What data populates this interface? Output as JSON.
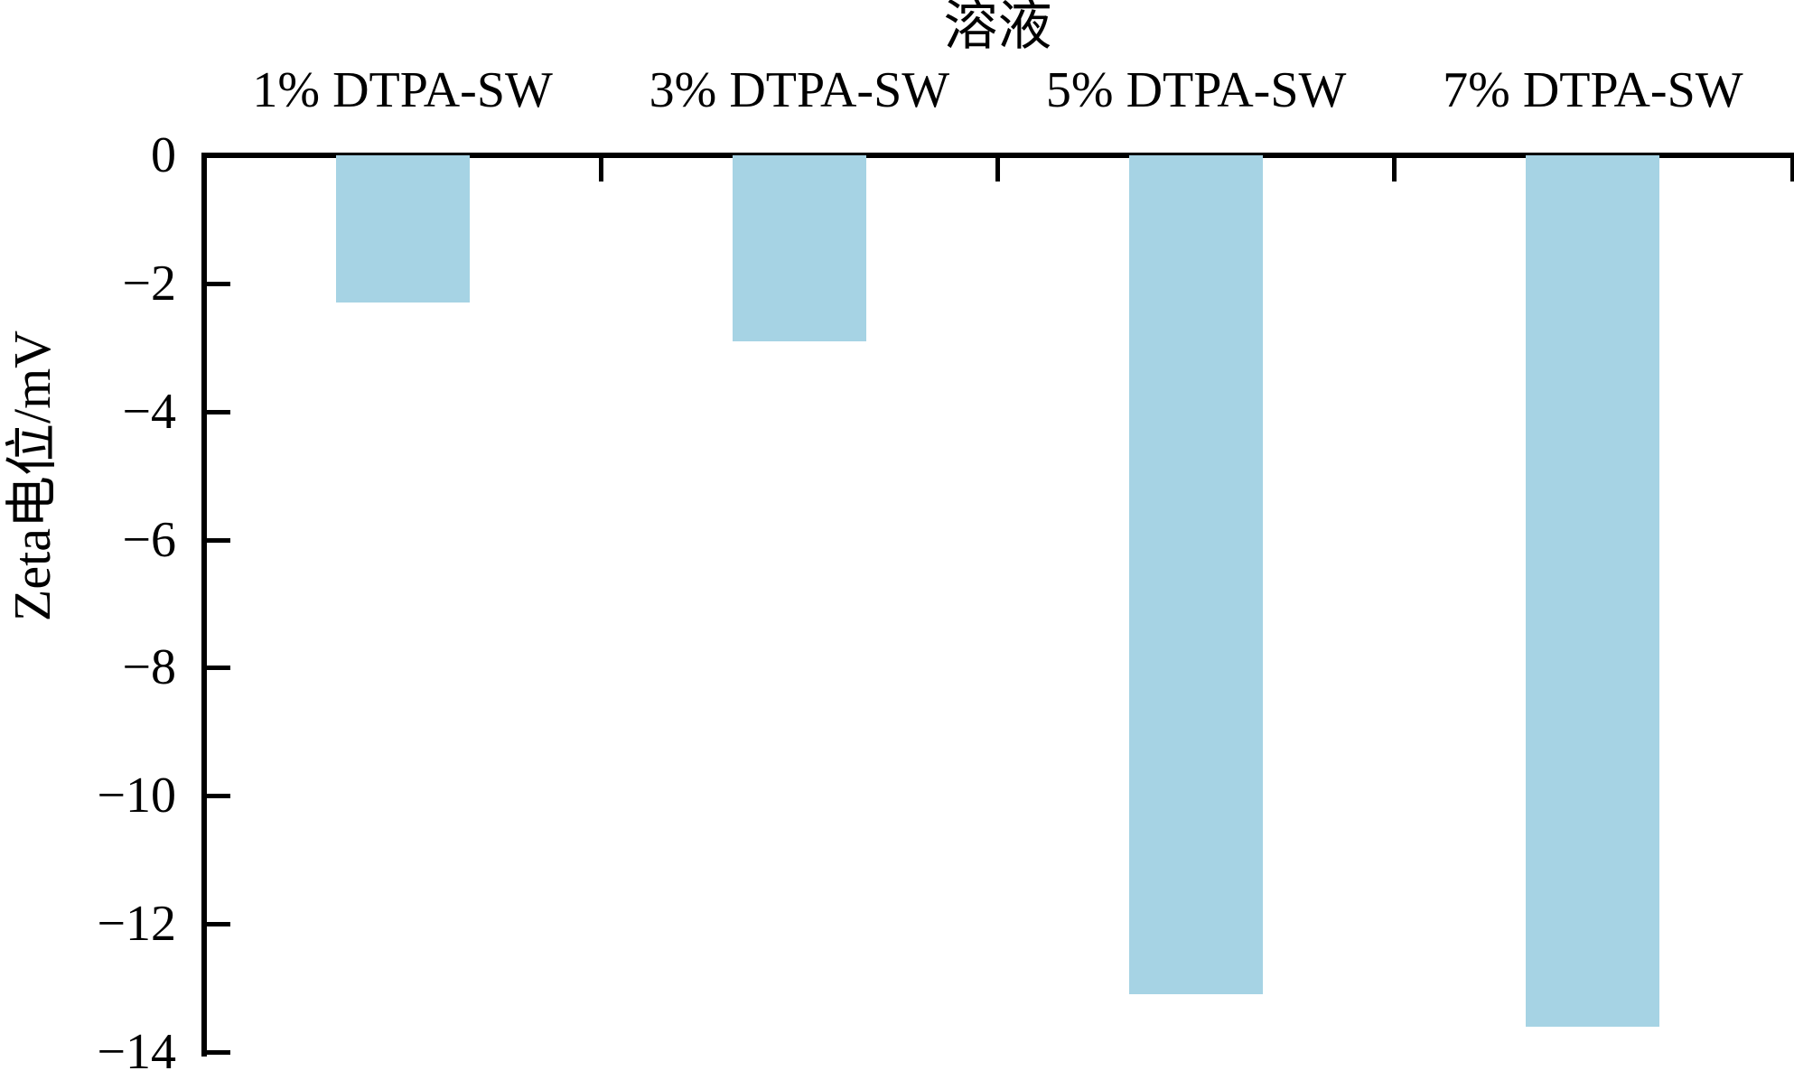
{
  "figure": {
    "title": "溶液",
    "ylabel": "Zeta电位/mV"
  },
  "chart_data": {
    "type": "bar",
    "title": "溶液",
    "xlabel": "",
    "ylabel": "Zeta电位/mV",
    "categories": [
      "1% DTPA-SW",
      "3% DTPA-SW",
      "5% DTPA-SW",
      "7% DTPA-SW"
    ],
    "values": [
      -2.3,
      -2.9,
      -13.1,
      -13.6
    ],
    "ylim": [
      -14,
      0
    ],
    "yticks": [
      0,
      -2,
      -4,
      -6,
      -8,
      -10,
      -12,
      -14
    ],
    "bar_direction": "down",
    "category_labels_position": "top",
    "grid": false,
    "legend": "none",
    "bar_color": "#a6d3e4",
    "axis_color": "#000000",
    "background_color": "#ffffff",
    "text_color": "#000000"
  }
}
